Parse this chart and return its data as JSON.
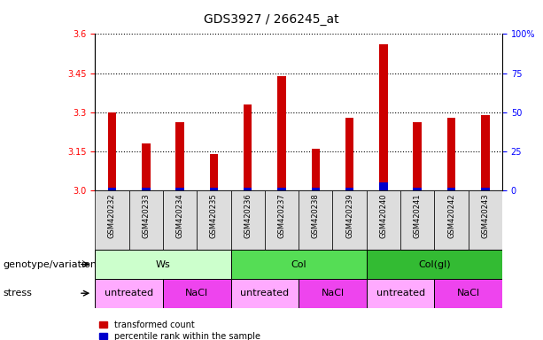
{
  "title": "GDS3927 / 266245_at",
  "samples": [
    "GSM420232",
    "GSM420233",
    "GSM420234",
    "GSM420235",
    "GSM420236",
    "GSM420237",
    "GSM420238",
    "GSM420239",
    "GSM420240",
    "GSM420241",
    "GSM420242",
    "GSM420243"
  ],
  "red_values": [
    3.3,
    3.18,
    3.26,
    3.14,
    3.33,
    3.44,
    3.16,
    3.28,
    3.56,
    3.26,
    3.28,
    3.29
  ],
  "blue_values": [
    1.5,
    1.5,
    1.5,
    1.5,
    1.5,
    1.5,
    1.5,
    1.5,
    5.0,
    1.5,
    1.5,
    1.5
  ],
  "y_min": 3.0,
  "y_max": 3.6,
  "y_ticks_left": [
    3.0,
    3.15,
    3.3,
    3.45,
    3.6
  ],
  "y_ticks_right": [
    0,
    25,
    50,
    75,
    100
  ],
  "genotype_groups": [
    {
      "label": "Ws",
      "start": 0,
      "end": 4,
      "color": "#ccffcc"
    },
    {
      "label": "Col",
      "start": 4,
      "end": 8,
      "color": "#55dd55"
    },
    {
      "label": "Col(gl)",
      "start": 8,
      "end": 12,
      "color": "#33bb33"
    }
  ],
  "stress_groups": [
    {
      "label": "untreated",
      "start": 0,
      "end": 2,
      "color": "#ffaaff"
    },
    {
      "label": "NaCl",
      "start": 2,
      "end": 4,
      "color": "#ee44ee"
    },
    {
      "label": "untreated",
      "start": 4,
      "end": 6,
      "color": "#ffaaff"
    },
    {
      "label": "NaCl",
      "start": 6,
      "end": 8,
      "color": "#ee44ee"
    },
    {
      "label": "untreated",
      "start": 8,
      "end": 10,
      "color": "#ffaaff"
    },
    {
      "label": "NaCl",
      "start": 10,
      "end": 12,
      "color": "#ee44ee"
    }
  ],
  "legend_red_label": "transformed count",
  "legend_blue_label": "percentile rank within the sample",
  "bar_color_red": "#cc0000",
  "bar_color_blue": "#0000cc",
  "bar_width": 0.25,
  "genotype_label": "genotype/variation",
  "stress_label": "stress",
  "title_fontsize": 10,
  "tick_fontsize": 7,
  "label_fontsize": 8,
  "row_label_fontsize": 8
}
